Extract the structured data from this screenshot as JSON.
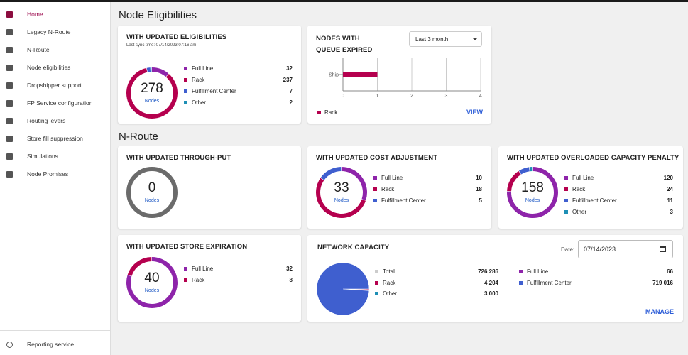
{
  "sidebar": {
    "items": [
      "Home",
      "Legacy N-Route",
      "N-Route",
      "Node eligibilities",
      "Dropshipper support",
      "FP Service configuration",
      "Routing levers",
      "Store fill suppression",
      "Simulations",
      "Node Promises"
    ],
    "footer": "Reporting service"
  },
  "sections": [
    "Node Eligibilities",
    "N-Route"
  ],
  "donut_cards": [
    {
      "title": "WITH UPDATED ELIGIBILITIES",
      "subtitle": "Last sync time: 07/14/2023 07:16 am",
      "total": 278,
      "unit": "Nodes",
      "segments": [
        {
          "name": "Full Line",
          "color": "#8e24aa",
          "value": 32
        },
        {
          "name": "Rack",
          "color": "#b5004e",
          "value": 237
        },
        {
          "name": "Fulfillment Center",
          "color": "#3f5fcf",
          "value": 7
        },
        {
          "name": "Other",
          "color": "#1e8fb5",
          "value": 2
        }
      ]
    },
    {
      "title": "WITH UPDATED THROUGH-PUT",
      "total": 0,
      "unit": "Nodes",
      "segments": []
    },
    {
      "title": "WITH UPDATED COST ADJUSTMENT",
      "total": 33,
      "unit": "Nodes",
      "segments": [
        {
          "name": "Full Line",
          "color": "#8e24aa",
          "value": 10
        },
        {
          "name": "Rack",
          "color": "#b5004e",
          "value": 18
        },
        {
          "name": "Fulfillment Center",
          "color": "#3f5fcf",
          "value": 5
        }
      ]
    },
    {
      "title": "WITH UPDATED OVERLOADED CAPACITY PENALTY",
      "total": 158,
      "unit": "Nodes",
      "segments": [
        {
          "name": "Full Line",
          "color": "#8e24aa",
          "value": 120
        },
        {
          "name": "Rack",
          "color": "#b5004e",
          "value": 24
        },
        {
          "name": "Fulfillment Center",
          "color": "#3f5fcf",
          "value": 11
        },
        {
          "name": "Other",
          "color": "#1e8fb5",
          "value": 3
        }
      ]
    },
    {
      "title": "WITH UPDATED STORE EXPIRATION",
      "total": 40,
      "unit": "Nodes",
      "segments": [
        {
          "name": "Full Line",
          "color": "#8e24aa",
          "value": 32
        },
        {
          "name": "Rack",
          "color": "#b5004e",
          "value": 8
        }
      ]
    }
  ],
  "queue_chart": {
    "type": "bar",
    "title": "NODES WITH QUEUE EXPIRED",
    "filter": "Last 3 month",
    "categories": [
      "Ship"
    ],
    "series": [
      {
        "name": "Rack",
        "color": "#b5004e",
        "values": [
          1
        ]
      }
    ],
    "xlim": [
      0,
      4
    ],
    "xticks": [
      0,
      1,
      2,
      3,
      4
    ],
    "grid": true,
    "link": "VIEW"
  },
  "network": {
    "title": "NETWORK CAPACITY",
    "date_label": "Date:",
    "date": "07/14/2023",
    "total": {
      "name": "Total",
      "color": "#cccccc",
      "value": 726286,
      "value_label": "726 286"
    },
    "segments": [
      {
        "name": "Rack",
        "color": "#b5004e",
        "value": 4204,
        "value_label": "4 204"
      },
      {
        "name": "Other",
        "color": "#1e8fb5",
        "value": 3000,
        "value_label": "3 000"
      },
      {
        "name": "Full Line",
        "color": "#8e24aa",
        "value": 66,
        "value_label": "66"
      },
      {
        "name": "Fulfillment Center",
        "color": "#3f5fcf",
        "value": 719016,
        "value_label": "719 016"
      }
    ],
    "link": "MANAGE"
  }
}
